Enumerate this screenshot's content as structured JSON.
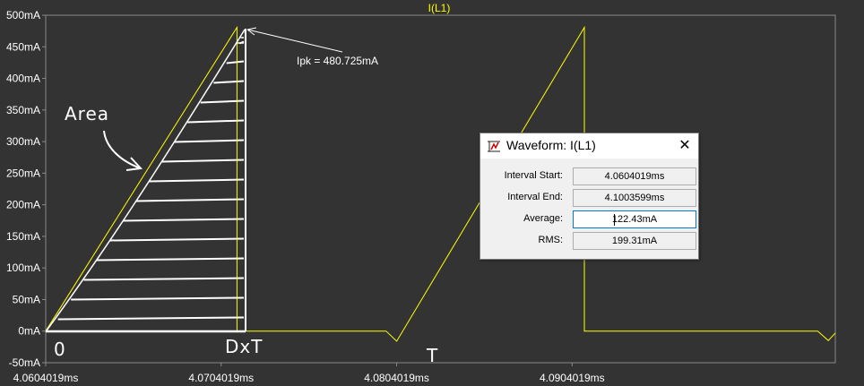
{
  "plot": {
    "title": "I(L1)",
    "background": "#333333",
    "trace_color": "#ffff00",
    "y_ticks": [
      "500mA",
      "450mA",
      "400mA",
      "350mA",
      "300mA",
      "250mA",
      "200mA",
      "150mA",
      "100mA",
      "50mA",
      "0mA",
      "-50mA"
    ],
    "x_ticks": [
      "4.0604019ms",
      "4.0704019ms",
      "4.0804019ms",
      "4.0904019ms"
    ],
    "annotation": "Ipk = 480.725mA",
    "handwriting": {
      "area": "Area",
      "origin": "0",
      "dxt": "DxT",
      "t": "T"
    }
  },
  "chart_data": {
    "type": "line",
    "title": "I(L1)",
    "xlabel": "",
    "ylabel": "",
    "ylim": [
      -50,
      500
    ],
    "xlim": [
      4.0604019,
      4.1054019
    ],
    "x_unit": "ms",
    "y_unit": "mA",
    "series": [
      {
        "name": "I(L1)",
        "points": [
          [
            4.0604019,
            0
          ],
          [
            4.0713019,
            480.725
          ],
          [
            4.0713019,
            0
          ],
          [
            4.0798019,
            0
          ],
          [
            4.0804019,
            -16
          ],
          [
            4.0911019,
            480.725
          ],
          [
            4.0911019,
            0
          ],
          [
            4.1044019,
            0
          ],
          [
            4.1050019,
            -15
          ],
          [
            4.1054019,
            -3
          ]
        ]
      }
    ]
  },
  "dialog": {
    "title": "Waveform: I(L1)",
    "close_icon": "close-icon",
    "rows": [
      {
        "label": "Interval Start:",
        "value": "4.0604019ms"
      },
      {
        "label": "Interval End:",
        "value": "4.1003599ms"
      },
      {
        "label": "Average:",
        "value": "122.43mA"
      },
      {
        "label": "RMS:",
        "value": "199.31mA"
      }
    ]
  }
}
